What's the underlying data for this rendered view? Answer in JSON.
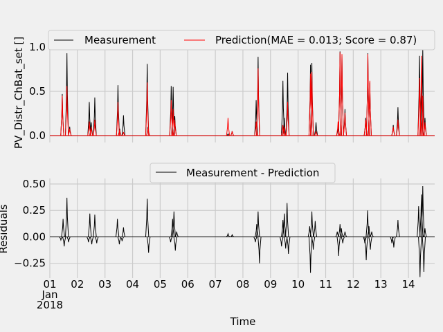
{
  "chart_data": [
    {
      "type": "line",
      "title": "",
      "xlabel": "",
      "ylabel": "PV_Distr_ChBat_set []",
      "ylim": [
        -0.03,
        1.0
      ],
      "yticks": [
        "0.0",
        "0.5",
        "1.0"
      ],
      "grid": true,
      "legend_position": "top",
      "x_unit": "days",
      "x_range": [
        1,
        15
      ],
      "series": [
        {
          "name": "Measurement",
          "color": "#000000",
          "spikes": [
            {
              "t": 1.45,
              "v": 0.47
            },
            {
              "t": 1.62,
              "v": 0.93
            },
            {
              "t": 1.72,
              "v": 0.1
            },
            {
              "t": 2.43,
              "v": 0.38
            },
            {
              "t": 2.5,
              "v": 0.15
            },
            {
              "t": 2.63,
              "v": 0.43
            },
            {
              "t": 3.47,
              "v": 0.57
            },
            {
              "t": 3.53,
              "v": 0.08
            },
            {
              "t": 3.67,
              "v": 0.23
            },
            {
              "t": 4.53,
              "v": 0.81
            },
            {
              "t": 4.56,
              "v": 0.1
            },
            {
              "t": 5.4,
              "v": 0.56
            },
            {
              "t": 5.47,
              "v": 0.55
            },
            {
              "t": 5.53,
              "v": 0.22
            },
            {
              "t": 7.46,
              "v": 0.02
            },
            {
              "t": 7.61,
              "v": 0.05
            },
            {
              "t": 8.48,
              "v": 0.4
            },
            {
              "t": 8.55,
              "v": 0.89
            },
            {
              "t": 9.45,
              "v": 0.62
            },
            {
              "t": 9.5,
              "v": 0.2
            },
            {
              "t": 9.62,
              "v": 0.71
            },
            {
              "t": 10.45,
              "v": 0.8
            },
            {
              "t": 10.5,
              "v": 0.82
            },
            {
              "t": 10.65,
              "v": 0.15
            },
            {
              "t": 11.45,
              "v": 0.1
            },
            {
              "t": 11.52,
              "v": 0.95
            },
            {
              "t": 11.59,
              "v": 0.9
            },
            {
              "t": 11.7,
              "v": 0.3
            },
            {
              "t": 12.45,
              "v": 0.2
            },
            {
              "t": 12.53,
              "v": 0.93
            },
            {
              "t": 12.6,
              "v": 0.6
            },
            {
              "t": 13.45,
              "v": 0.12
            },
            {
              "t": 13.62,
              "v": 0.32
            },
            {
              "t": 14.4,
              "v": 0.9
            },
            {
              "t": 14.47,
              "v": 0.6
            },
            {
              "t": 14.52,
              "v": 0.98
            },
            {
              "t": 14.6,
              "v": 0.2
            }
          ]
        },
        {
          "name": "Prediction(MAE = 0.013; Score = 0.87)",
          "color": "#ff0000",
          "spikes": [
            {
              "t": 1.45,
              "v": 0.45
            },
            {
              "t": 1.62,
              "v": 0.56
            },
            {
              "t": 1.72,
              "v": 0.08
            },
            {
              "t": 2.43,
              "v": 0.16
            },
            {
              "t": 2.5,
              "v": 0.1
            },
            {
              "t": 2.63,
              "v": 0.18
            },
            {
              "t": 3.47,
              "v": 0.38
            },
            {
              "t": 3.53,
              "v": 0.06
            },
            {
              "t": 3.67,
              "v": 0.04
            },
            {
              "t": 4.53,
              "v": 0.6
            },
            {
              "t": 4.56,
              "v": 0.08
            },
            {
              "t": 5.4,
              "v": 0.4
            },
            {
              "t": 5.47,
              "v": 0.3
            },
            {
              "t": 5.53,
              "v": 0.18
            },
            {
              "t": 7.46,
              "v": 0.2
            },
            {
              "t": 7.61,
              "v": 0.05
            },
            {
              "t": 8.48,
              "v": 0.16
            },
            {
              "t": 8.55,
              "v": 0.76
            },
            {
              "t": 9.45,
              "v": 0.12
            },
            {
              "t": 9.5,
              "v": 0.1
            },
            {
              "t": 9.62,
              "v": 0.38
            },
            {
              "t": 10.45,
              "v": 0.7
            },
            {
              "t": 10.5,
              "v": 0.72
            },
            {
              "t": 10.65,
              "v": 0.05
            },
            {
              "t": 11.45,
              "v": 0.16
            },
            {
              "t": 11.52,
              "v": 0.94
            },
            {
              "t": 11.59,
              "v": 0.92
            },
            {
              "t": 11.7,
              "v": 0.26
            },
            {
              "t": 12.45,
              "v": 0.18
            },
            {
              "t": 12.53,
              "v": 0.92
            },
            {
              "t": 12.6,
              "v": 0.62
            },
            {
              "t": 13.45,
              "v": 0.1
            },
            {
              "t": 13.62,
              "v": 0.18
            },
            {
              "t": 14.4,
              "v": 0.65
            },
            {
              "t": 14.47,
              "v": 0.9
            },
            {
              "t": 14.52,
              "v": 0.45
            },
            {
              "t": 14.6,
              "v": 0.15
            }
          ]
        }
      ]
    },
    {
      "type": "line",
      "title": "",
      "xlabel": "Time",
      "ylabel": "Residuals",
      "ylim": [
        -0.35,
        0.5
      ],
      "yticks": [
        "−0.25",
        "0.00",
        "0.25",
        "0.50"
      ],
      "grid": true,
      "legend_position": "top-center",
      "x_unit": "days",
      "x_range": [
        1,
        15
      ],
      "x_tick_labels": [
        "01\nJan\n2018",
        "02",
        "03",
        "04",
        "05",
        "06",
        "07",
        "08",
        "09",
        "10",
        "11",
        "12",
        "13",
        "14"
      ],
      "series": [
        {
          "name": "Measurement - Prediction",
          "color": "#000000",
          "spikes": [
            {
              "t": 1.4,
              "v": -0.03
            },
            {
              "t": 1.48,
              "v": 0.17
            },
            {
              "t": 1.52,
              "v": -0.09
            },
            {
              "t": 1.62,
              "v": 0.37
            },
            {
              "t": 1.68,
              "v": -0.05
            },
            {
              "t": 2.4,
              "v": -0.05
            },
            {
              "t": 2.45,
              "v": 0.22
            },
            {
              "t": 2.52,
              "v": -0.07
            },
            {
              "t": 2.63,
              "v": 0.21
            },
            {
              "t": 2.7,
              "v": -0.06
            },
            {
              "t": 3.45,
              "v": 0.17
            },
            {
              "t": 3.52,
              "v": -0.07
            },
            {
              "t": 3.67,
              "v": 0.09
            },
            {
              "t": 3.62,
              "v": -0.04
            },
            {
              "t": 4.53,
              "v": 0.36
            },
            {
              "t": 4.58,
              "v": -0.15
            },
            {
              "t": 5.38,
              "v": -0.05
            },
            {
              "t": 5.45,
              "v": 0.17
            },
            {
              "t": 5.5,
              "v": 0.24
            },
            {
              "t": 5.55,
              "v": -0.13
            },
            {
              "t": 5.6,
              "v": 0.05
            },
            {
              "t": 7.46,
              "v": 0.03
            },
            {
              "t": 7.61,
              "v": 0.02
            },
            {
              "t": 8.45,
              "v": -0.05
            },
            {
              "t": 8.5,
              "v": 0.12
            },
            {
              "t": 8.55,
              "v": 0.24
            },
            {
              "t": 8.6,
              "v": -0.25
            },
            {
              "t": 9.4,
              "v": -0.09
            },
            {
              "t": 9.45,
              "v": 0.16
            },
            {
              "t": 9.5,
              "v": 0.22
            },
            {
              "t": 9.55,
              "v": -0.11
            },
            {
              "t": 9.6,
              "v": 0.32
            },
            {
              "t": 9.65,
              "v": -0.16
            },
            {
              "t": 10.42,
              "v": 0.1
            },
            {
              "t": 10.45,
              "v": -0.34
            },
            {
              "t": 10.5,
              "v": 0.24
            },
            {
              "t": 10.55,
              "v": -0.12
            },
            {
              "t": 10.62,
              "v": 0.15
            },
            {
              "t": 11.42,
              "v": 0.05
            },
            {
              "t": 11.47,
              "v": -0.18
            },
            {
              "t": 11.52,
              "v": 0.12
            },
            {
              "t": 11.57,
              "v": 0.08
            },
            {
              "t": 11.62,
              "v": -0.06
            },
            {
              "t": 11.7,
              "v": 0.05
            },
            {
              "t": 12.42,
              "v": -0.06
            },
            {
              "t": 12.47,
              "v": -0.22
            },
            {
              "t": 12.52,
              "v": 0.25
            },
            {
              "t": 12.57,
              "v": 0.1
            },
            {
              "t": 12.62,
              "v": -0.12
            },
            {
              "t": 12.67,
              "v": 0.05
            },
            {
              "t": 13.4,
              "v": -0.06
            },
            {
              "t": 13.47,
              "v": -0.1
            },
            {
              "t": 13.62,
              "v": 0.16
            },
            {
              "t": 14.37,
              "v": 0.29
            },
            {
              "t": 14.42,
              "v": -0.38
            },
            {
              "t": 14.47,
              "v": 0.4
            },
            {
              "t": 14.52,
              "v": 0.48
            },
            {
              "t": 14.56,
              "v": -0.33
            },
            {
              "t": 14.6,
              "v": 0.08
            }
          ]
        }
      ]
    }
  ]
}
